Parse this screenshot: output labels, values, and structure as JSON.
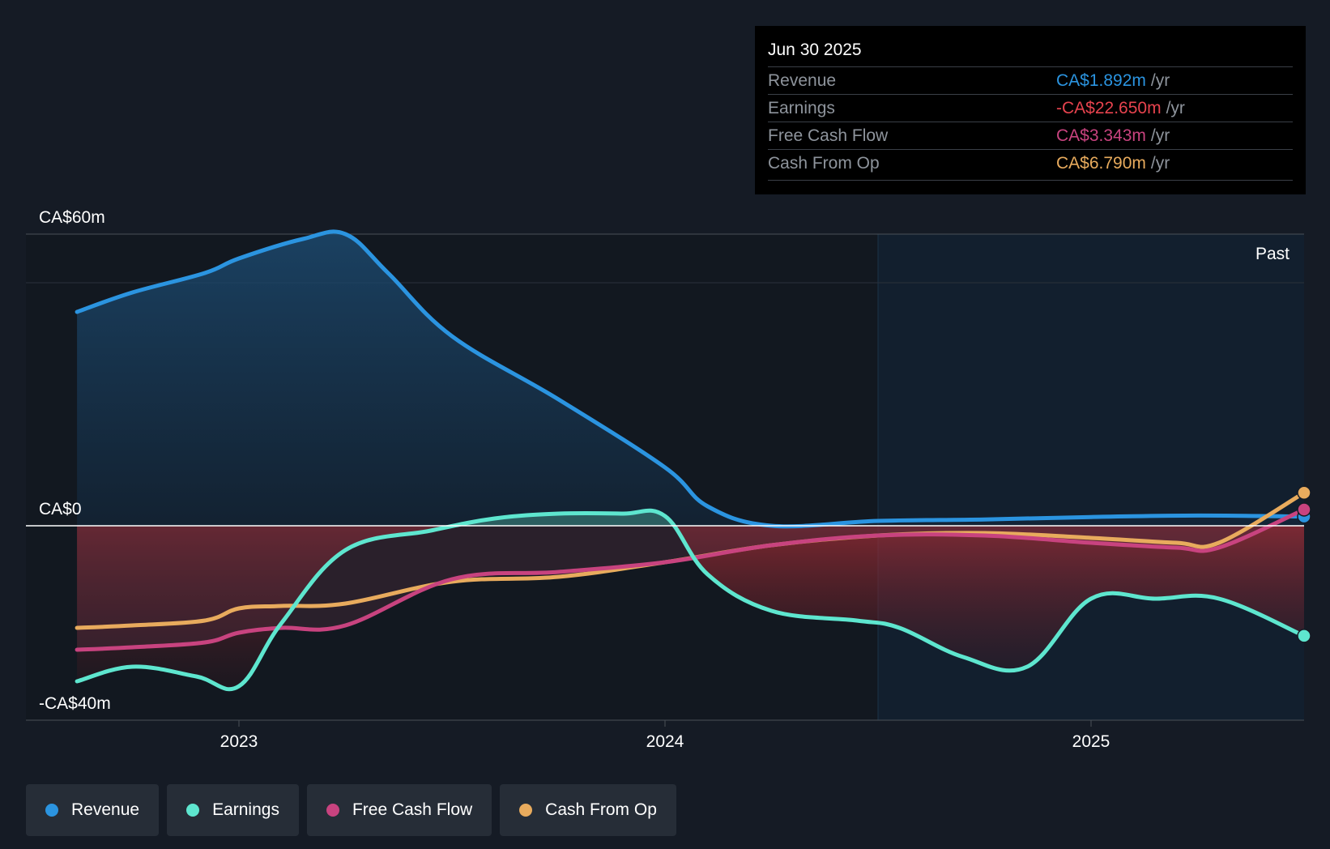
{
  "colors": {
    "revenue": "#2b94e0",
    "earnings": "#5ee6cf",
    "fcf": "#c8437f",
    "cfo": "#e8ab5d",
    "negative": "#e7434e"
  },
  "tooltip": {
    "date": "Jun 30 2025",
    "rows": [
      {
        "label": "Revenue",
        "value": "CA$1.892m",
        "unit": "/yr"
      },
      {
        "label": "Earnings",
        "value": "-CA$22.650m",
        "unit": "/yr"
      },
      {
        "label": "Free Cash Flow",
        "value": "CA$3.343m",
        "unit": "/yr"
      },
      {
        "label": "Cash From Op",
        "value": "CA$6.790m",
        "unit": "/yr"
      }
    ]
  },
  "past_label": "Past",
  "legend": [
    {
      "label": "Revenue",
      "color": "#2b94e0"
    },
    {
      "label": "Earnings",
      "color": "#5ee6cf"
    },
    {
      "label": "Free Cash Flow",
      "color": "#c8437f"
    },
    {
      "label": "Cash From Op",
      "color": "#e8ab5d"
    }
  ],
  "chart_data": {
    "type": "line",
    "title": "",
    "xlabel": "",
    "ylabel": "",
    "unit": "CA$m",
    "ylim": [
      -40,
      60
    ],
    "xlim": [
      2022.5,
      2025.5
    ],
    "y_tick_labels": [
      {
        "value": 60,
        "label": "CA$60m"
      },
      {
        "value": 0,
        "label": "CA$0"
      },
      {
        "value": -40,
        "label": "-CA$40m"
      }
    ],
    "x_ticks": [
      {
        "value": 2023,
        "label": "2023"
      },
      {
        "value": 2024,
        "label": "2024"
      },
      {
        "value": 2025,
        "label": "2025"
      }
    ],
    "past_start": 2024.5,
    "series": [
      {
        "name": "Revenue",
        "key": "revenue",
        "x": [
          2022.62,
          2022.75,
          2022.92,
          2023.0,
          2023.15,
          2023.25,
          2023.35,
          2023.5,
          2023.75,
          2024.0,
          2024.1,
          2024.25,
          2024.5,
          2024.75,
          2025.0,
          2025.25,
          2025.5
        ],
        "y": [
          44,
          48,
          52,
          55,
          59,
          60,
          52,
          39,
          26,
          12,
          4,
          0,
          1,
          1.3,
          1.8,
          2.1,
          1.9
        ]
      },
      {
        "name": "Earnings",
        "key": "earnings",
        "x": [
          2022.62,
          2022.75,
          2022.9,
          2023.0,
          2023.1,
          2023.25,
          2023.45,
          2023.6,
          2023.75,
          2023.9,
          2024.0,
          2024.1,
          2024.25,
          2024.45,
          2024.55,
          2024.7,
          2024.85,
          2025.0,
          2025.15,
          2025.3,
          2025.5
        ],
        "y": [
          -32,
          -29,
          -31,
          -33,
          -20,
          -5,
          -1,
          1.5,
          2.5,
          2.5,
          2,
          -10,
          -17.5,
          -19.5,
          -21,
          -27,
          -29,
          -15,
          -15,
          -15,
          -22.65
        ]
      },
      {
        "name": "Free Cash Flow",
        "key": "fcf",
        "x": [
          2022.62,
          2022.75,
          2022.92,
          2023.0,
          2023.1,
          2023.25,
          2023.5,
          2023.75,
          2024.0,
          2024.25,
          2024.5,
          2024.75,
          2025.0,
          2025.2,
          2025.3,
          2025.5
        ],
        "y": [
          -25.5,
          -25,
          -24,
          -22,
          -21,
          -20.5,
          -11,
          -9.5,
          -7.5,
          -4,
          -2,
          -2,
          -3.5,
          -4.5,
          -4.5,
          3.34
        ]
      },
      {
        "name": "Cash From Op",
        "key": "cfo",
        "x": [
          2022.62,
          2022.75,
          2022.92,
          2023.0,
          2023.1,
          2023.25,
          2023.5,
          2023.75,
          2024.0,
          2024.25,
          2024.5,
          2024.75,
          2025.0,
          2025.2,
          2025.3,
          2025.5
        ],
        "y": [
          -21,
          -20.5,
          -19.5,
          -17,
          -16.5,
          -16,
          -11.5,
          -10.5,
          -7.5,
          -4,
          -2,
          -1.5,
          -2.5,
          -3.5,
          -3.5,
          6.79
        ]
      }
    ]
  }
}
